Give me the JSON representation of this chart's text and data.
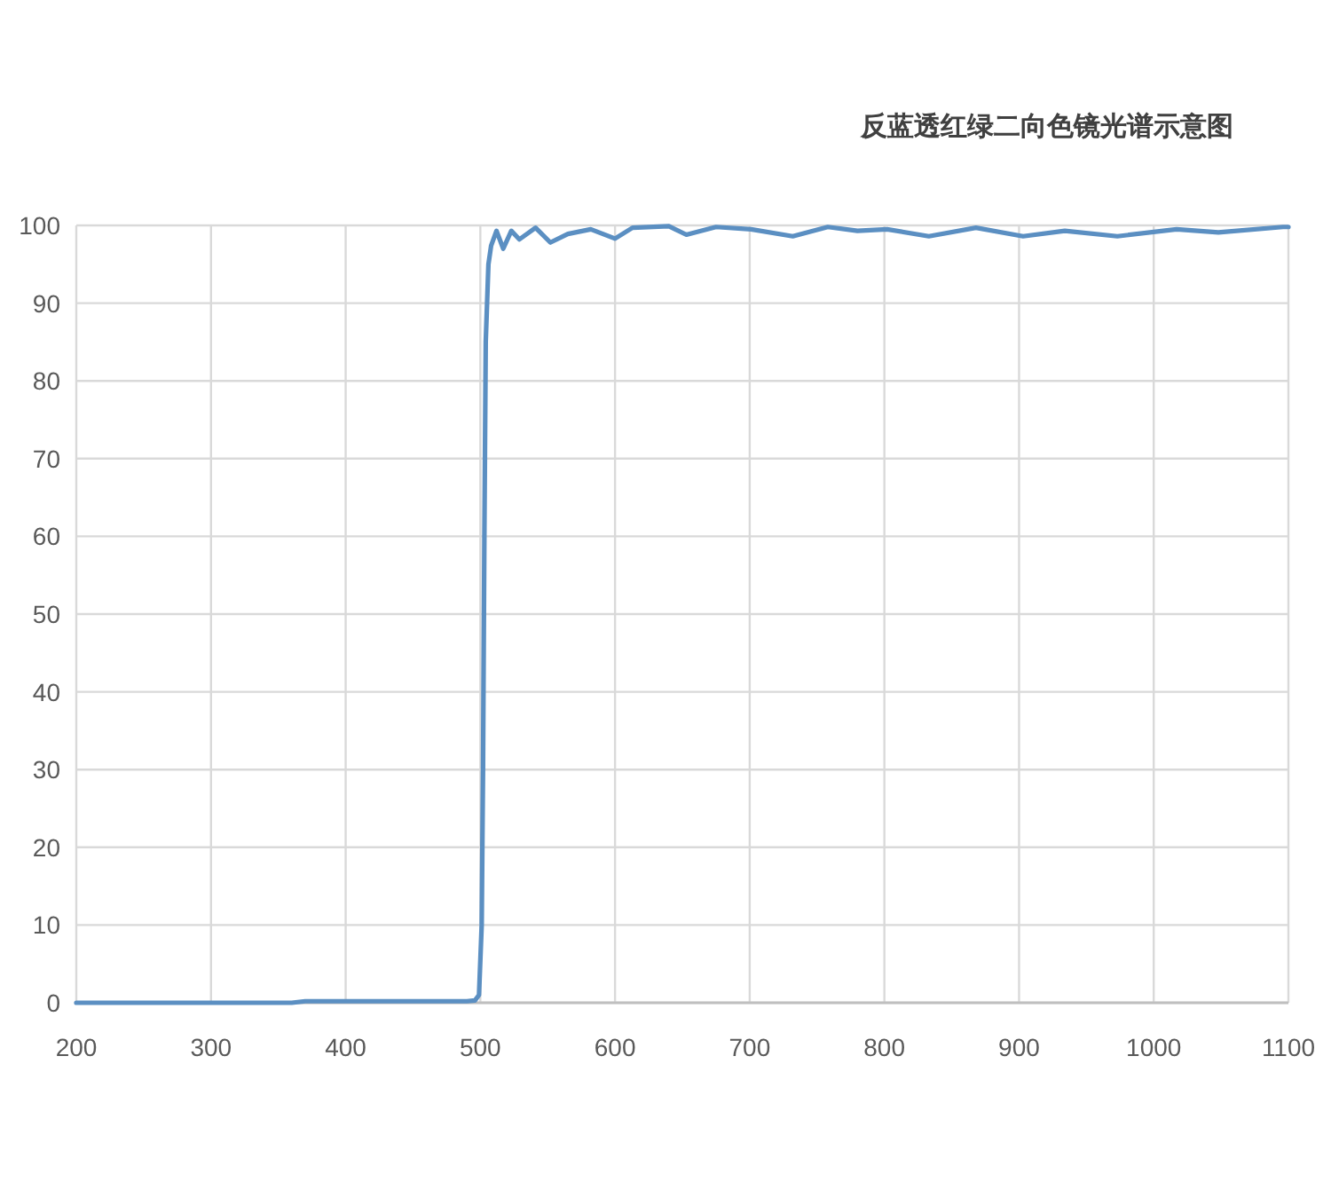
{
  "chart_data": {
    "type": "line",
    "title": "反蓝透红绿二向色镜光谱示意图",
    "x": [
      200,
      300,
      360,
      370,
      490,
      496,
      499,
      501,
      502,
      503,
      504,
      506,
      508,
      512,
      517,
      523,
      529,
      541,
      552,
      565,
      582,
      600,
      613,
      640,
      653,
      675,
      701,
      732,
      758,
      780,
      802,
      833,
      868,
      903,
      934,
      973,
      1017,
      1048,
      1096,
      1100
    ],
    "values": [
      0,
      0,
      0,
      0.2,
      0.2,
      0.3,
      1,
      10,
      30,
      60,
      85,
      95,
      97.4,
      99.3,
      97,
      99.3,
      98.2,
      99.7,
      97.8,
      98.9,
      99.5,
      98.3,
      99.7,
      99.9,
      98.8,
      99.8,
      99.5,
      98.6,
      99.8,
      99.3,
      99.5,
      98.6,
      99.7,
      98.6,
      99.3,
      98.6,
      99.5,
      99.1,
      99.8,
      99.8
    ],
    "color": "#5b8fc2",
    "xlim": [
      200,
      1100
    ],
    "ylim": [
      0,
      100
    ],
    "xticks": [
      200,
      300,
      400,
      500,
      600,
      700,
      800,
      900,
      1000,
      1100
    ],
    "yticks": [
      0,
      10,
      20,
      30,
      40,
      50,
      60,
      70,
      80,
      90,
      100
    ],
    "grid": true
  }
}
